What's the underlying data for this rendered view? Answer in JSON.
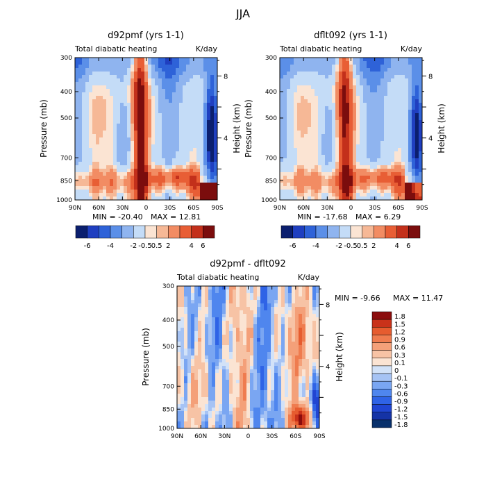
{
  "season_title": "JJA",
  "shared": {
    "subtitle": "Total diabatic heating",
    "units": "K/day",
    "ylabel_left": "Pressure (mb)",
    "ylabel_right": "Height (km)",
    "pressure_ticks": [
      300,
      400,
      500,
      700,
      850,
      1000
    ],
    "height_ticks": [
      8,
      4
    ],
    "lat_ticks": [
      "90N",
      "60N",
      "30N",
      "0",
      "30S",
      "60S",
      "90S"
    ]
  },
  "colors": {
    "full": [
      "#0b1f6e",
      "#1f3fc0",
      "#2e62d8",
      "#5b8fe8",
      "#8fb4ef",
      "#c4dcf7",
      "#fbe4d3",
      "#f6b896",
      "#f28c63",
      "#e85e35",
      "#c3301b",
      "#7b0d0d"
    ],
    "diff": [
      "#08306b",
      "#1533a6",
      "#2045d2",
      "#2f63e6",
      "#4f86ee",
      "#7aa6f2",
      "#a6c3f4",
      "#d2e2f8",
      "#fbe4d3",
      "#f7c3a5",
      "#f4a079",
      "#ef7c4f",
      "#e65c2f",
      "#c9321a",
      "#8b0d0d"
    ]
  },
  "chart_data": [
    {
      "type": "heatmap",
      "title": "d92pmf (yrs 1-1)",
      "subtitle": "Total diabatic heating",
      "units": "K/day",
      "xlabel": "",
      "ylabel": "Pressure (mb)",
      "ylabel_right": "Height (km)",
      "x_ticks": [
        "90N",
        "60N",
        "30N",
        "0",
        "30S",
        "60S",
        "90S"
      ],
      "y_ticks": [
        300,
        400,
        500,
        700,
        850,
        1000
      ],
      "ylim": [
        1000,
        300
      ],
      "colorbar_levels": [
        -6,
        -5,
        -4,
        -3,
        -2,
        -1,
        -0.5,
        0,
        0.5,
        1,
        2,
        3,
        4,
        5,
        6
      ],
      "colorbar_labels": [
        "-6",
        "-4",
        "-2",
        "-0.5",
        "0.5",
        "2",
        "4",
        "6"
      ],
      "min_label": "MIN = -20.40",
      "max_label": "MAX = 12.81",
      "min": -20.4,
      "max": 12.81
    },
    {
      "type": "heatmap",
      "title": "dflt092 (yrs 1-1)",
      "subtitle": "Total diabatic heating",
      "units": "K/day",
      "xlabel": "",
      "ylabel": "Pressure (mb)",
      "ylabel_right": "Height (km)",
      "x_ticks": [
        "90N",
        "60N",
        "30N",
        "0",
        "30S",
        "60S",
        "90S"
      ],
      "y_ticks": [
        300,
        400,
        500,
        700,
        850,
        1000
      ],
      "ylim": [
        1000,
        300
      ],
      "colorbar_levels": [
        -6,
        -5,
        -4,
        -3,
        -2,
        -1,
        -0.5,
        0,
        0.5,
        1,
        2,
        3,
        4,
        5,
        6
      ],
      "colorbar_labels": [
        "-6",
        "-4",
        "-2",
        "-0.5",
        "0.5",
        "2",
        "4",
        "6"
      ],
      "min_label": "MIN = -17.68",
      "max_label": "MAX = 6.29",
      "min": -17.68,
      "max": 6.29
    },
    {
      "type": "heatmap",
      "title": "d92pmf - dflt092",
      "subtitle": "Total diabatic heating",
      "units": "K/day",
      "xlabel": "",
      "ylabel": "Pressure (mb)",
      "ylabel_right": "Height (km)",
      "x_ticks": [
        "90N",
        "60N",
        "30N",
        "0",
        "30S",
        "60S",
        "90S"
      ],
      "y_ticks": [
        300,
        400,
        500,
        700,
        850,
        1000
      ],
      "ylim": [
        1000,
        300
      ],
      "colorbar_labels": [
        "1.8",
        "1.5",
        "1.2",
        "0.9",
        "0.6",
        "0.3",
        "0.1",
        "0",
        "-0.1",
        "-0.3",
        "-0.6",
        "-0.9",
        "-1.2",
        "-1.5",
        "-1.8"
      ],
      "min_label": "MIN = -9.66",
      "max_label": "MAX = 11.47",
      "min": -9.66,
      "max": 11.47
    }
  ]
}
